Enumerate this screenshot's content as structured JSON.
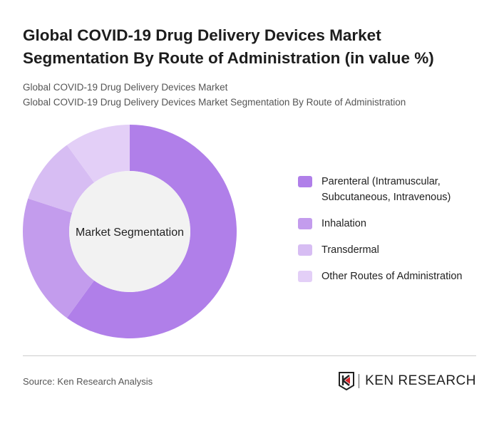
{
  "title": "Global COVID-19 Drug Delivery Devices Market Segmentation By Route of Administration (in value %)",
  "subtitle_1": "Global COVID-19 Drug Delivery Devices Market",
  "subtitle_2": "Global COVID-19 Drug Delivery Devices Market Segmentation By Route of Administration",
  "chart_data": {
    "type": "pie",
    "variant": "donut",
    "center_label": "Market Segmentation",
    "categories": [
      "Parenteral (Intramuscular, Subcutaneous, Intravenous)",
      "Inhalation",
      "Transdermal",
      "Other Routes of Administration"
    ],
    "values": [
      60,
      20,
      10,
      10
    ],
    "colors": [
      "#b07fe9",
      "#c39ced",
      "#d7bdf3",
      "#e3cff7"
    ],
    "legend_position": "right"
  },
  "source": "Source: Ken Research Analysis",
  "logo_text": "KEN RESEARCH"
}
